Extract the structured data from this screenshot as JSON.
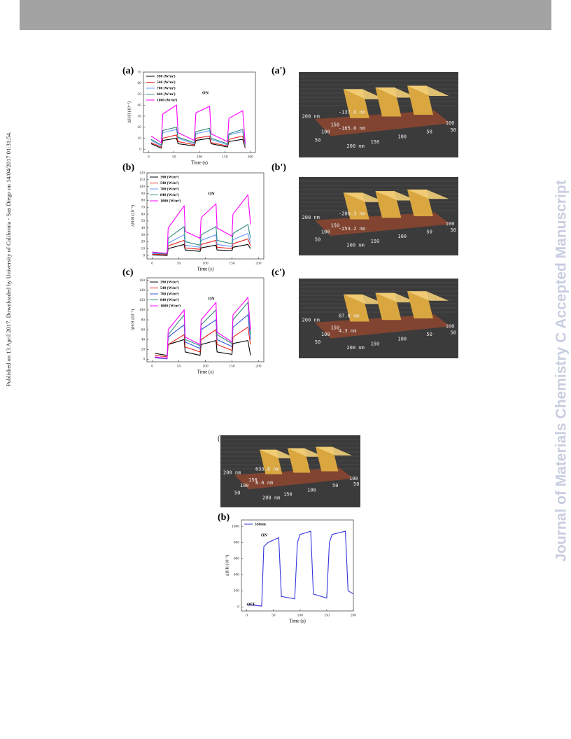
{
  "sidebar_left": "Published on 13 April 2017. Downloaded by University of California - San Diego on 14/04/2017 01:31:54.",
  "watermark": "Journal of Materials Chemistry C Accepted Manuscript",
  "chart_data": [
    {
      "type": "line",
      "panel": "(a)",
      "x_label": "Time (s)",
      "y_label": "ΔH/H (10⁻³)",
      "annotation": "ON",
      "xlim": [
        -10,
        210
      ],
      "xticks": [
        0,
        50,
        100,
        150,
        200
      ],
      "ylim": [
        -3,
        70
      ],
      "yticks": [
        0,
        10,
        20,
        30,
        40,
        50,
        60,
        70
      ],
      "x": [
        5,
        25,
        28,
        55,
        58,
        90,
        93,
        120,
        123,
        155,
        158,
        185,
        190
      ],
      "series": [
        {
          "name": "390 (W/m²)",
          "color": "#000000",
          "values": [
            5,
            1,
            8,
            10,
            5,
            3,
            8,
            10,
            5,
            2,
            7,
            9,
            1
          ]
        },
        {
          "name": "540 (W/m²)",
          "color": "#e4211c",
          "values": [
            6,
            2,
            10,
            13,
            7,
            4,
            10,
            12,
            6,
            3,
            9,
            12,
            1
          ]
        },
        {
          "name": "700 (W/m²)",
          "color": "#6699ff",
          "values": [
            8,
            3,
            15,
            18,
            10,
            5,
            14,
            17,
            9,
            4,
            13,
            16,
            2
          ]
        },
        {
          "name": "840 (W/m²)",
          "color": "#2e8b7a",
          "values": [
            9,
            4,
            17,
            20,
            11,
            6,
            16,
            19,
            10,
            5,
            14,
            18,
            3
          ]
        },
        {
          "name": "1000 (W/m²)",
          "color": "#ff00ff",
          "values": [
            12,
            6,
            32,
            40,
            15,
            8,
            33,
            39,
            14,
            7,
            28,
            35,
            5
          ]
        }
      ]
    },
    {
      "type": "line",
      "panel": "(b)",
      "x_label": "Time (s)",
      "y_label": "ΔH/H (10⁻³)",
      "annotation": "ON",
      "xlim": [
        -10,
        210
      ],
      "xticks": [
        0,
        50,
        100,
        150,
        200
      ],
      "ylim": [
        -5,
        120
      ],
      "yticks": [
        0,
        10,
        20,
        30,
        40,
        50,
        60,
        70,
        80,
        90,
        100,
        110,
        120
      ],
      "x": [
        0,
        28,
        30,
        60,
        62,
        90,
        92,
        120,
        122,
        150,
        152,
        180,
        185
      ],
      "series": [
        {
          "name": "390 (W/m²)",
          "color": "#000000",
          "values": [
            1,
            0,
            10,
            16,
            8,
            6,
            11,
            15,
            8,
            7,
            12,
            16,
            10
          ]
        },
        {
          "name": "540 (W/m²)",
          "color": "#e4211c",
          "values": [
            2,
            1,
            14,
            22,
            11,
            9,
            16,
            22,
            12,
            10,
            17,
            24,
            14
          ]
        },
        {
          "name": "700 (W/m²)",
          "color": "#6699ff",
          "values": [
            3,
            2,
            18,
            30,
            15,
            12,
            22,
            30,
            16,
            13,
            23,
            32,
            18
          ]
        },
        {
          "name": "840 (W/m²)",
          "color": "#2e8b7a",
          "values": [
            4,
            2,
            25,
            42,
            20,
            15,
            30,
            42,
            22,
            17,
            32,
            45,
            25
          ]
        },
        {
          "name": "1000 (W/m²)",
          "color": "#ff00ff",
          "values": [
            5,
            3,
            40,
            72,
            35,
            25,
            55,
            75,
            40,
            28,
            60,
            88,
            45
          ]
        }
      ]
    },
    {
      "type": "line",
      "panel": "(c)",
      "x_label": "Time (s)",
      "y_label": "ΔH/H (10⁻³)",
      "annotation": "ON",
      "xlim": [
        -10,
        210
      ],
      "xticks": [
        0,
        50,
        100,
        150,
        200
      ],
      "ylim": [
        -5,
        165
      ],
      "yticks": [
        0,
        20,
        40,
        60,
        80,
        100,
        120,
        140,
        160
      ],
      "x": [
        5,
        28,
        30,
        60,
        62,
        90,
        92,
        120,
        122,
        150,
        152,
        180,
        185
      ],
      "series": [
        {
          "name": "390 (W/m²)",
          "color": "#000000",
          "values": [
            12,
            8,
            30,
            40,
            15,
            8,
            30,
            38,
            15,
            10,
            32,
            38,
            8
          ]
        },
        {
          "name": "540 (W/m²)",
          "color": "#e4211c",
          "values": [
            8,
            5,
            30,
            50,
            25,
            15,
            40,
            60,
            30,
            18,
            45,
            65,
            30
          ]
        },
        {
          "name": "700 (W/m²)",
          "color": "#3355dd",
          "values": [
            3,
            1,
            45,
            70,
            35,
            22,
            60,
            80,
            40,
            26,
            65,
            90,
            40
          ]
        },
        {
          "name": "840 (W/m²)",
          "color": "#2e8b7a",
          "values": [
            4,
            2,
            50,
            90,
            40,
            28,
            70,
            100,
            50,
            32,
            80,
            115,
            50
          ]
        },
        {
          "name": "1000 (W/m²)",
          "color": "#ff00ff",
          "values": [
            5,
            2,
            60,
            100,
            45,
            30,
            80,
            115,
            55,
            35,
            90,
            125,
            60
          ]
        }
      ]
    },
    {
      "type": "line",
      "panel": "(b)",
      "x_label": "Time (s)",
      "y_label": "ΔH/H (10⁻³)",
      "annotation": "ON",
      "annotation2": "OFF",
      "xlim": [
        -10,
        200
      ],
      "xticks": [
        0,
        50,
        100,
        150,
        200
      ],
      "ylim": [
        -50,
        1080
      ],
      "yticks": [
        0,
        200,
        400,
        600,
        800,
        1000
      ],
      "x": [
        0,
        28,
        32,
        40,
        60,
        65,
        90,
        95,
        100,
        120,
        125,
        150,
        155,
        160,
        185,
        190,
        200
      ],
      "series": [
        {
          "name": "550nm",
          "color": "#3333dd",
          "values": [
            30,
            10,
            750,
            800,
            860,
            130,
            100,
            800,
            900,
            940,
            160,
            110,
            800,
            900,
            940,
            200,
            160
          ]
        }
      ]
    }
  ],
  "afm_images": [
    {
      "panel": "(a')",
      "labels": [
        "-137.0 nm",
        "-165.0 nm",
        "200 nm",
        "150",
        "100",
        "50",
        "200 nm",
        "150",
        "100",
        "50",
        "100",
        "50"
      ]
    },
    {
      "panel": "(b')",
      "labels": [
        "-200.3 nm",
        "-253.2 nm",
        "200 nm",
        "150",
        "100",
        "50",
        "200 nm",
        "150",
        "100",
        "50",
        "100",
        "50"
      ]
    },
    {
      "panel": "(c')",
      "labels": [
        "87.8 nm",
        "4.3 nm",
        "200 nm",
        "150",
        "100",
        "50",
        "200 nm",
        "150",
        "100",
        "50",
        "100",
        "50"
      ]
    },
    {
      "panel": "(a)",
      "labels": [
        "633.8 nm",
        "8.6 nm",
        "200 nm",
        "150",
        "100",
        "50",
        "200 nm",
        "150",
        "100",
        "50",
        "100",
        "50"
      ]
    }
  ]
}
